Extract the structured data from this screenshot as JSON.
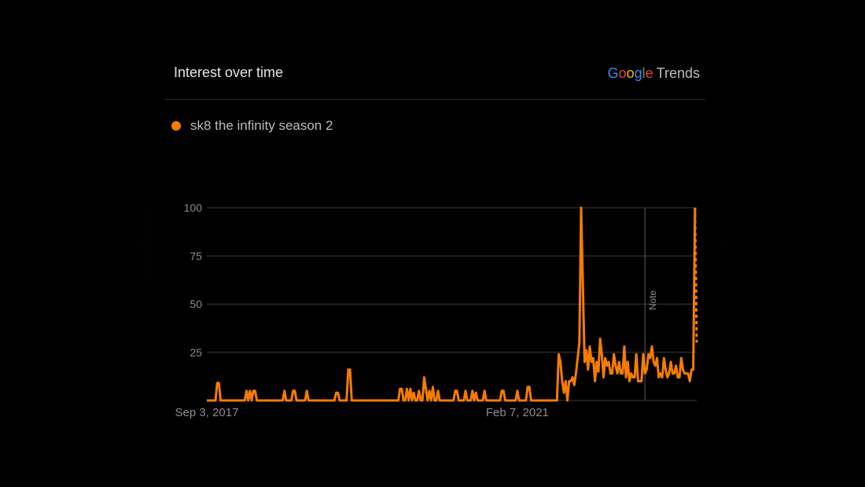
{
  "header": {
    "title": "Interest over time",
    "brand_google": [
      "G",
      "o",
      "o",
      "g",
      "l",
      "e"
    ],
    "brand_trends": "Trends"
  },
  "legend": {
    "series_name": "sk8 the infinity season 2",
    "color": "#f57c00"
  },
  "chart_data": {
    "type": "line",
    "title": "Interest over time",
    "xlabel": "",
    "ylabel": "",
    "ylim": [
      0,
      100
    ],
    "yticks": [
      25,
      50,
      75,
      100
    ],
    "x_tick_labels": [
      {
        "label": "Sep 3, 2017",
        "index": 0
      },
      {
        "label": "Feb 7, 2021",
        "index": 180
      }
    ],
    "annotation": {
      "label": "Note",
      "index": 254
    },
    "grid": true,
    "series": [
      {
        "name": "sk8 the infinity season 2",
        "color": "#f57c00",
        "values": [
          0,
          0,
          0,
          0,
          0,
          0,
          9,
          9,
          0,
          0,
          0,
          0,
          0,
          0,
          0,
          0,
          0,
          0,
          0,
          0,
          0,
          0,
          0,
          5,
          0,
          5,
          0,
          5,
          5,
          0,
          0,
          0,
          0,
          0,
          0,
          0,
          0,
          0,
          0,
          0,
          0,
          0,
          0,
          0,
          0,
          5,
          0,
          0,
          0,
          0,
          5,
          5,
          0,
          0,
          0,
          0,
          0,
          0,
          5,
          0,
          0,
          0,
          0,
          0,
          0,
          0,
          0,
          0,
          0,
          0,
          0,
          0,
          0,
          0,
          0,
          4,
          4,
          0,
          0,
          0,
          0,
          0,
          16,
          16,
          0,
          0,
          0,
          0,
          0,
          0,
          0,
          0,
          0,
          0,
          0,
          0,
          0,
          0,
          0,
          0,
          0,
          0,
          0,
          0,
          0,
          0,
          0,
          0,
          0,
          0,
          0,
          0,
          6,
          6,
          0,
          0,
          6,
          0,
          6,
          0,
          4,
          0,
          0,
          5,
          0,
          0,
          12,
          6,
          0,
          5,
          0,
          7,
          0,
          0,
          5,
          0,
          0,
          0,
          0,
          0,
          0,
          0,
          0,
          0,
          5,
          5,
          0,
          0,
          0,
          0,
          5,
          0,
          0,
          0,
          5,
          0,
          4,
          0,
          0,
          0,
          0,
          5,
          0,
          0,
          0,
          0,
          0,
          0,
          0,
          0,
          0,
          5,
          5,
          0,
          0,
          0,
          0,
          0,
          0,
          0,
          5,
          0,
          0,
          0,
          0,
          0,
          7,
          7,
          0,
          0,
          0,
          0,
          0,
          0,
          0,
          0,
          0,
          0,
          0,
          0,
          0,
          0,
          0,
          0,
          24,
          20,
          10,
          4,
          10,
          0,
          10,
          10,
          12,
          8,
          14,
          22,
          30,
          100,
          60,
          20,
          26,
          16,
          28,
          20,
          22,
          10,
          20,
          15,
          32,
          24,
          12,
          22,
          18,
          20,
          14,
          14,
          24,
          18,
          14,
          20,
          14,
          14,
          28,
          12,
          20,
          10,
          14,
          12,
          12,
          24,
          10,
          10,
          10,
          24,
          14,
          16,
          24,
          22,
          28,
          20,
          18,
          22,
          12,
          14,
          12,
          22,
          16,
          12,
          14,
          20,
          14,
          14,
          18,
          12,
          12,
          22,
          16,
          14,
          14,
          14,
          10,
          16,
          16,
          100,
          30
        ]
      }
    ]
  }
}
